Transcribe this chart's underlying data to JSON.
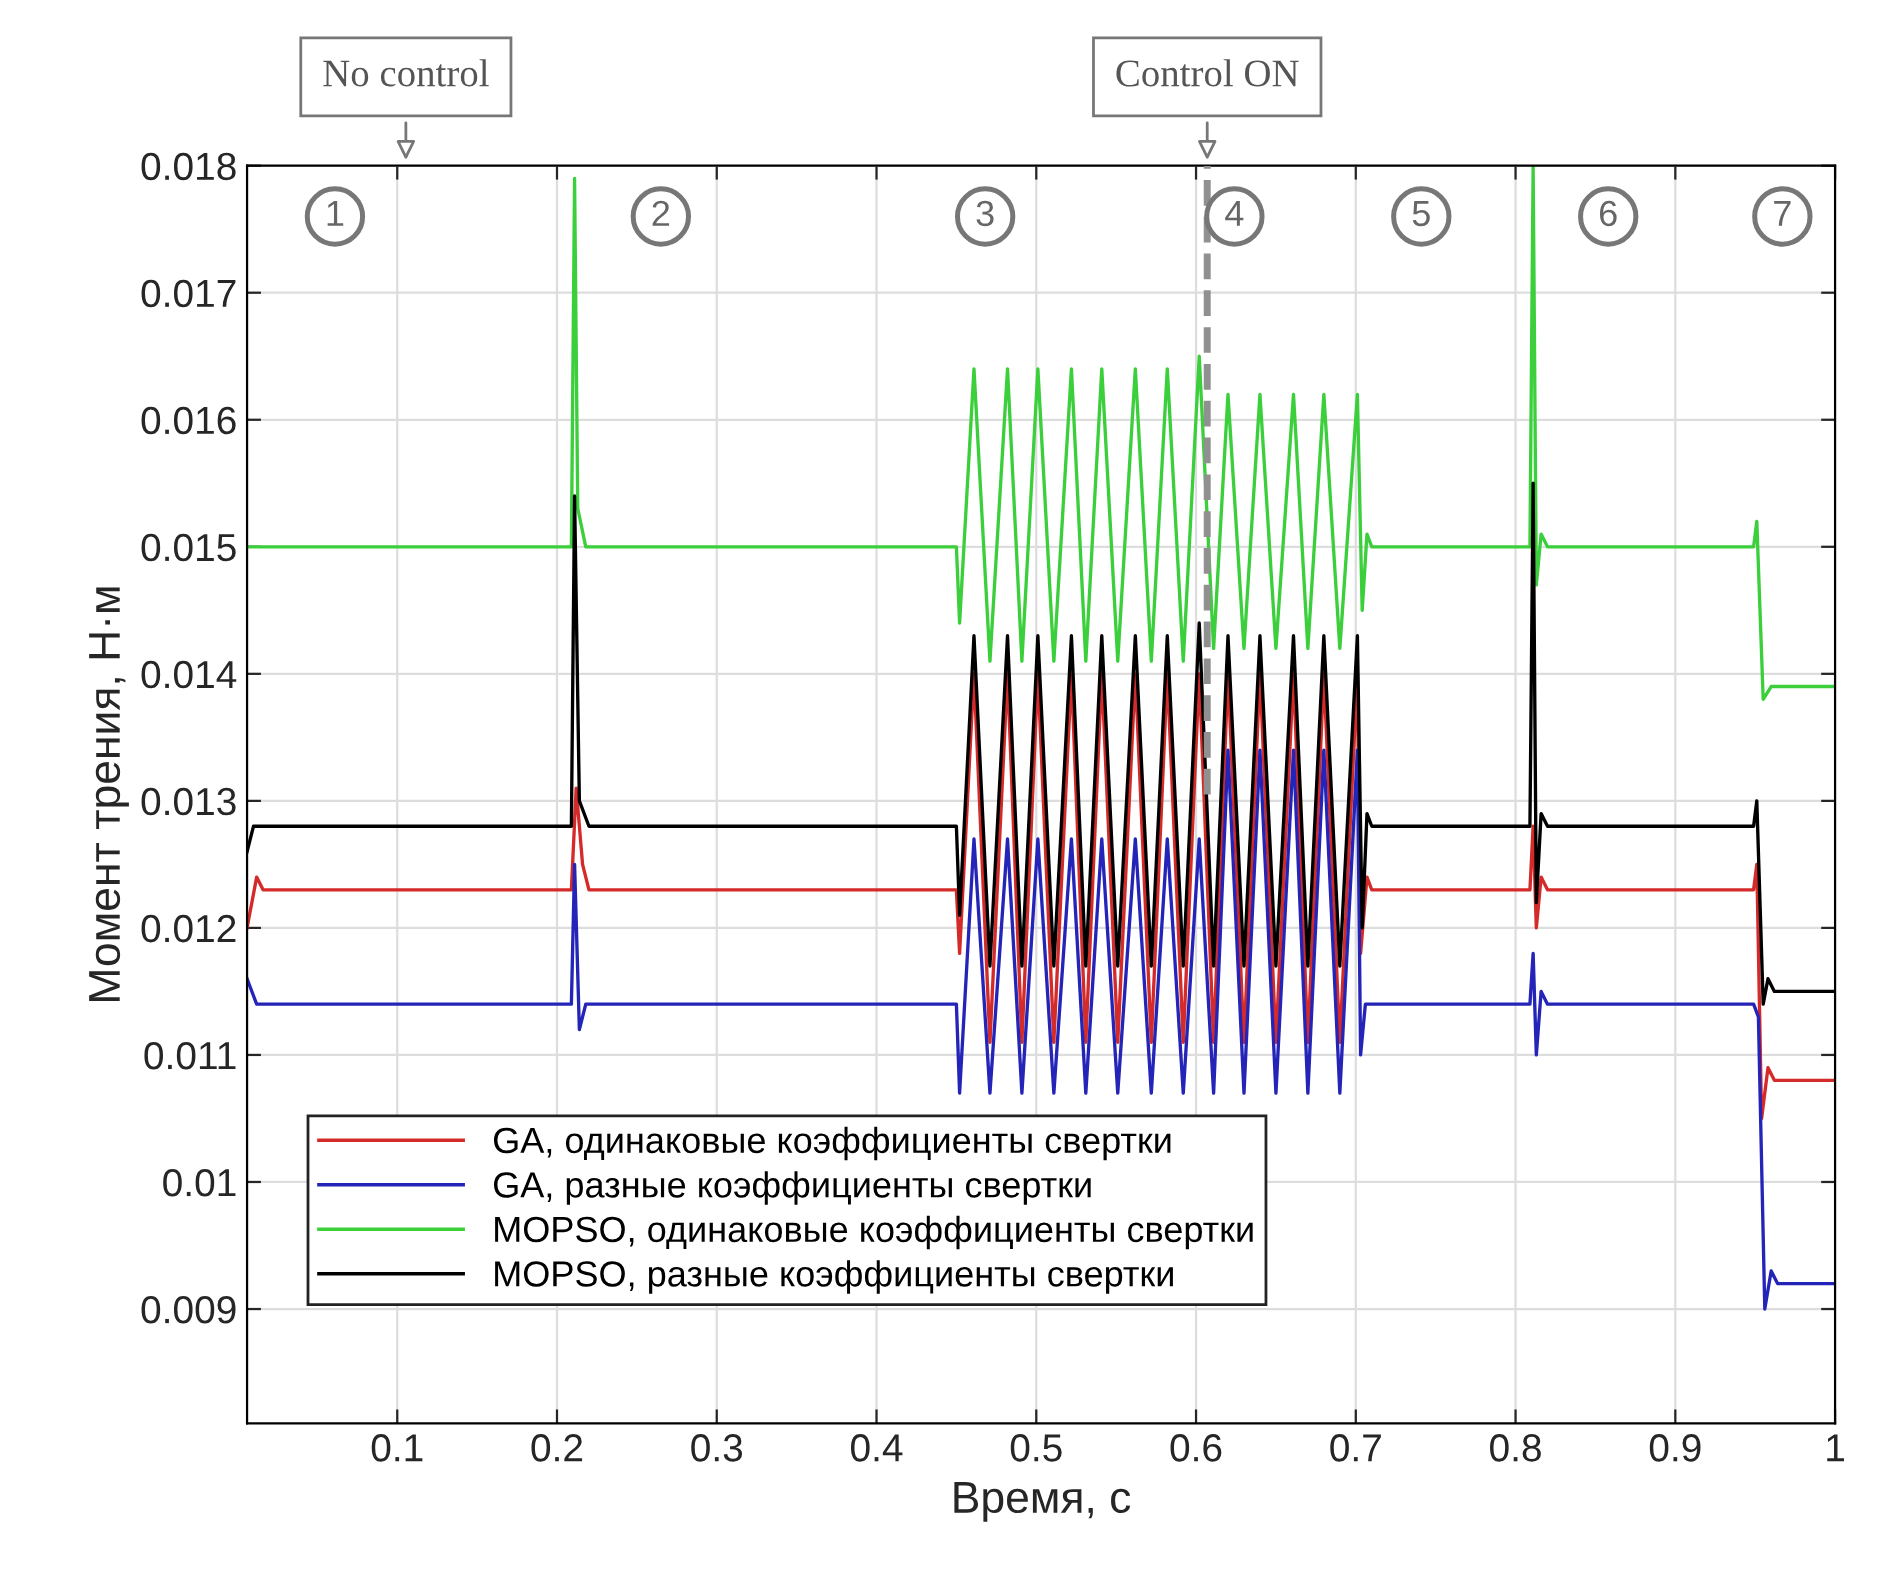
{
  "chart_data": {
    "type": "line",
    "xlabel": "Время, с",
    "ylabel": "Момент трения, Н·м",
    "xlim": [
      0.006,
      1.0
    ],
    "ylim": [
      0.0081,
      0.018
    ],
    "xticks": [
      0.1,
      0.2,
      0.3,
      0.4,
      0.5,
      0.6,
      0.7,
      0.8,
      0.9,
      1
    ],
    "yticks": [
      0.009,
      0.01,
      0.011,
      0.012,
      0.013,
      0.014,
      0.015,
      0.016,
      0.017,
      0.018
    ],
    "grid": true,
    "legend": "bottom left",
    "marker": "none",
    "line_style": "solid",
    "series": [
      {
        "name": "GA, одинаковые коэффициенты свертки",
        "color": "#d42a2a",
        "x": [
          0.006,
          0.012,
          0.016,
          0.209,
          0.212,
          0.216,
          0.22,
          0.45,
          0.452,
          0.461,
          0.471,
          0.482,
          0.491,
          0.501,
          0.511,
          0.522,
          0.531,
          0.541,
          0.551,
          0.562,
          0.572,
          0.582,
          0.592,
          0.602,
          0.611,
          0.62,
          0.63,
          0.64,
          0.65,
          0.661,
          0.67,
          0.68,
          0.69,
          0.701,
          0.703,
          0.707,
          0.71,
          0.809,
          0.811,
          0.813,
          0.816,
          0.82,
          0.949,
          0.951,
          0.954,
          0.958,
          0.962,
          1.0
        ],
        "values": [
          0.012,
          0.0124,
          0.0123,
          0.0123,
          0.0131,
          0.0125,
          0.0123,
          0.0123,
          0.0118,
          0.014,
          0.0111,
          0.014,
          0.0111,
          0.014,
          0.0111,
          0.014,
          0.0111,
          0.014,
          0.0111,
          0.014,
          0.0111,
          0.014,
          0.0111,
          0.014,
          0.0111,
          0.014,
          0.0111,
          0.014,
          0.0111,
          0.014,
          0.0111,
          0.014,
          0.0111,
          0.014,
          0.0118,
          0.0124,
          0.0123,
          0.0123,
          0.0128,
          0.012,
          0.0124,
          0.0123,
          0.0123,
          0.0125,
          0.0105,
          0.0109,
          0.0108,
          0.0108
        ]
      },
      {
        "name": "GA, разные коэффициенты свертки",
        "color": "#2424b8",
        "x": [
          0.006,
          0.012,
          0.016,
          0.209,
          0.211,
          0.214,
          0.218,
          0.45,
          0.452,
          0.461,
          0.471,
          0.482,
          0.491,
          0.501,
          0.511,
          0.522,
          0.531,
          0.541,
          0.551,
          0.562,
          0.572,
          0.582,
          0.592,
          0.602,
          0.611,
          0.62,
          0.63,
          0.64,
          0.65,
          0.661,
          0.67,
          0.68,
          0.69,
          0.701,
          0.703,
          0.706,
          0.71,
          0.809,
          0.811,
          0.813,
          0.816,
          0.82,
          0.949,
          0.952,
          0.956,
          0.96,
          0.964,
          1.0
        ],
        "values": [
          0.0116,
          0.0114,
          0.0114,
          0.0114,
          0.0125,
          0.0112,
          0.0114,
          0.0114,
          0.0107,
          0.0127,
          0.0107,
          0.0127,
          0.0107,
          0.0127,
          0.0107,
          0.0127,
          0.0107,
          0.0127,
          0.0107,
          0.0127,
          0.0107,
          0.0127,
          0.0107,
          0.0127,
          0.0107,
          0.0134,
          0.0107,
          0.0134,
          0.0107,
          0.0134,
          0.0107,
          0.0134,
          0.0107,
          0.0134,
          0.011,
          0.0114,
          0.0114,
          0.0114,
          0.0118,
          0.011,
          0.0115,
          0.0114,
          0.0114,
          0.0113,
          0.009,
          0.0093,
          0.0092,
          0.0092
        ]
      },
      {
        "name": "MOPSO, одинаковые коэффициенты свертки",
        "color": "#3ccf3c",
        "x": [
          0.006,
          0.209,
          0.211,
          0.213,
          0.218,
          0.45,
          0.452,
          0.461,
          0.471,
          0.482,
          0.491,
          0.501,
          0.511,
          0.522,
          0.531,
          0.541,
          0.551,
          0.562,
          0.572,
          0.582,
          0.592,
          0.602,
          0.611,
          0.62,
          0.63,
          0.64,
          0.65,
          0.661,
          0.67,
          0.68,
          0.69,
          0.701,
          0.704,
          0.707,
          0.71,
          0.809,
          0.811,
          0.813,
          0.816,
          0.82,
          0.949,
          0.951,
          0.955,
          0.96,
          1.0
        ],
        "values": [
          0.015,
          0.015,
          0.0179,
          0.0153,
          0.015,
          0.015,
          0.0144,
          0.0164,
          0.0141,
          0.0164,
          0.0141,
          0.0164,
          0.0141,
          0.0164,
          0.0141,
          0.0164,
          0.0141,
          0.0164,
          0.0141,
          0.0164,
          0.0141,
          0.0165,
          0.0142,
          0.0162,
          0.0142,
          0.0162,
          0.0142,
          0.0162,
          0.0142,
          0.0162,
          0.0142,
          0.0162,
          0.0145,
          0.0151,
          0.015,
          0.015,
          0.018,
          0.0147,
          0.0151,
          0.015,
          0.015,
          0.0152,
          0.0138,
          0.0139,
          0.0139
        ]
      },
      {
        "name": "MOPSO, разные коэффициенты свертки",
        "color": "#000000",
        "x": [
          0.006,
          0.01,
          0.014,
          0.209,
          0.211,
          0.214,
          0.22,
          0.45,
          0.452,
          0.461,
          0.471,
          0.482,
          0.491,
          0.501,
          0.511,
          0.522,
          0.531,
          0.541,
          0.551,
          0.562,
          0.572,
          0.582,
          0.592,
          0.602,
          0.611,
          0.62,
          0.63,
          0.64,
          0.65,
          0.661,
          0.67,
          0.68,
          0.69,
          0.701,
          0.704,
          0.707,
          0.71,
          0.809,
          0.811,
          0.813,
          0.816,
          0.82,
          0.949,
          0.951,
          0.955,
          0.958,
          0.962,
          1.0
        ],
        "values": [
          0.0126,
          0.0128,
          0.0128,
          0.0128,
          0.0154,
          0.013,
          0.0128,
          0.0128,
          0.0121,
          0.0143,
          0.0117,
          0.0143,
          0.0117,
          0.0143,
          0.0117,
          0.0143,
          0.0117,
          0.0143,
          0.0117,
          0.0143,
          0.0117,
          0.0143,
          0.0117,
          0.0144,
          0.0117,
          0.0143,
          0.0117,
          0.0143,
          0.0117,
          0.0143,
          0.0117,
          0.0143,
          0.0117,
          0.0143,
          0.012,
          0.0129,
          0.0128,
          0.0128,
          0.0155,
          0.0122,
          0.0129,
          0.0128,
          0.0128,
          0.013,
          0.0114,
          0.0116,
          0.0115,
          0.0115
        ]
      }
    ],
    "ref_lines": [
      {
        "axis": "x",
        "value": 0.607,
        "label": "Control ON",
        "color": "#909090",
        "line_style": "dashed"
      }
    ],
    "annotations": [
      "No control",
      {
        "text": "1",
        "x": 0.061,
        "y": 0.0176
      },
      {
        "text": "2",
        "x": 0.265,
        "y": 0.0176
      },
      {
        "text": "3",
        "x": 0.468,
        "y": 0.0176
      },
      {
        "text": "4",
        "x": 0.624,
        "y": 0.0176
      },
      {
        "text": "5",
        "x": 0.741,
        "y": 0.0176
      },
      {
        "text": "6",
        "x": 0.858,
        "y": 0.0176
      },
      {
        "text": "7",
        "x": 0.967,
        "y": 0.0176
      }
    ]
  }
}
